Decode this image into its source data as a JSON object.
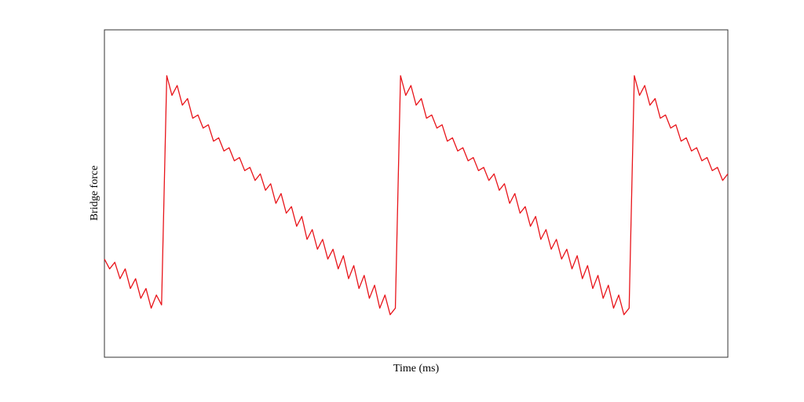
{
  "chart_data": {
    "type": "line",
    "xlabel": "Time (ms)",
    "ylabel": "Bridge force",
    "xlim": [
      0,
      120
    ],
    "ylim": [
      0,
      100
    ],
    "x": [
      0,
      1,
      2,
      3,
      4,
      5,
      6,
      7,
      8,
      9,
      10,
      11,
      12,
      13,
      14,
      15,
      16,
      17,
      18,
      19,
      20,
      21,
      22,
      23,
      24,
      25,
      26,
      27,
      28,
      29,
      30,
      31,
      32,
      33,
      34,
      35,
      36,
      37,
      38,
      39,
      40,
      41,
      42,
      43,
      44,
      45,
      46,
      47,
      48,
      49,
      50,
      51,
      52,
      53,
      54,
      55,
      56,
      57,
      58,
      59,
      60,
      61,
      62,
      63,
      64,
      65,
      66,
      67,
      68,
      69,
      70,
      71,
      72,
      73,
      74,
      75,
      76,
      77,
      78,
      79,
      80,
      81,
      82,
      83,
      84,
      85,
      86,
      87,
      88,
      89,
      90,
      91,
      92,
      93,
      94,
      95,
      96,
      97,
      98,
      99,
      100,
      101,
      102,
      103,
      104,
      105,
      106,
      107,
      108,
      109,
      110,
      111,
      112,
      113,
      114,
      115,
      116,
      117,
      118,
      119,
      120
    ],
    "series": [
      {
        "color": "#e8141a",
        "values": [
          30,
          27,
          29,
          24,
          27,
          21,
          24,
          18,
          21,
          15,
          19,
          16,
          86,
          80,
          83,
          77,
          79,
          73,
          74,
          70,
          71,
          66,
          67,
          63,
          64,
          60,
          61,
          57,
          58,
          54,
          56,
          51,
          53,
          47,
          50,
          44,
          46,
          40,
          43,
          36,
          39,
          33,
          36,
          30,
          33,
          27,
          31,
          24,
          28,
          21,
          25,
          18,
          22,
          15,
          19,
          13,
          15,
          86,
          80,
          83,
          77,
          79,
          73,
          74,
          70,
          71,
          66,
          67,
          63,
          64,
          60,
          61,
          57,
          58,
          54,
          56,
          51,
          53,
          47,
          50,
          44,
          46,
          40,
          43,
          36,
          39,
          33,
          36,
          30,
          33,
          27,
          31,
          24,
          28,
          21,
          25,
          18,
          22,
          15,
          19,
          13,
          15,
          86,
          80,
          83,
          77,
          79,
          73,
          74,
          70,
          71,
          66,
          67,
          63,
          64,
          60,
          61,
          57,
          58,
          54,
          56
        ]
      }
    ]
  }
}
